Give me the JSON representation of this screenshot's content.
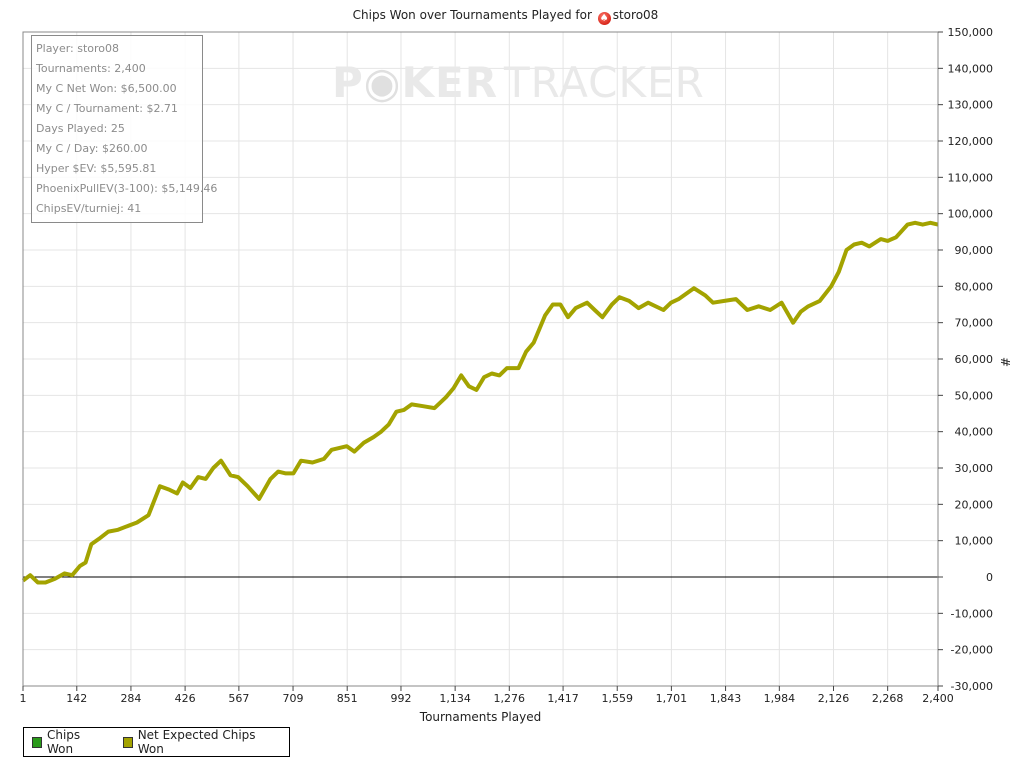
{
  "title": {
    "prefix": "Chips Won over Tournaments Played for",
    "player": "storo08",
    "icon": "spade-icon"
  },
  "watermark": {
    "part1": "P",
    "part2": "KER",
    "part3": "TRACKER"
  },
  "stats": [
    "Player: storo08",
    "Tournaments: 2,400",
    "My C Net Won: $6,500.00",
    "My C / Tournament: $2.71",
    "Days Played: 25",
    "My C / Day: $260.00",
    "Hyper $EV: $5,595.81",
    "PhoenixPullEV(3-100): $5,149.46",
    "ChipsEV/turniej: 41"
  ],
  "legend": [
    {
      "label": "Chips Won",
      "color": "#2a9a1a"
    },
    {
      "label": "Net Expected Chips Won",
      "color": "#a3a300"
    }
  ],
  "chart_data": {
    "type": "line",
    "title": "Chips Won over Tournaments Played for storo08",
    "xlabel": "Tournaments Played",
    "ylabel": "#",
    "xlim": [
      1,
      2400
    ],
    "ylim": [
      -30000,
      150000
    ],
    "grid": true,
    "x_ticks": [
      1,
      142,
      284,
      426,
      567,
      709,
      851,
      992,
      1134,
      1276,
      1417,
      1559,
      1701,
      1843,
      1984,
      2126,
      2268,
      2400
    ],
    "x_tick_labels": [
      "1",
      "142",
      "284",
      "426",
      "567",
      "709",
      "851",
      "992",
      "1,134",
      "1,276",
      "1,417",
      "1,559",
      "1,701",
      "1,843",
      "1,984",
      "2,126",
      "2,268",
      "2,400"
    ],
    "y_ticks": [
      -30000,
      -20000,
      -10000,
      0,
      10000,
      20000,
      30000,
      40000,
      50000,
      60000,
      70000,
      80000,
      90000,
      100000,
      110000,
      120000,
      130000,
      140000,
      150000
    ],
    "y_tick_labels": [
      "-30,000",
      "-20,000",
      "-10,000",
      "0",
      "10,000",
      "20,000",
      "30,000",
      "40,000",
      "50,000",
      "60,000",
      "70,000",
      "80,000",
      "90,000",
      "100,000",
      "110,000",
      "120,000",
      "130,000",
      "140,000",
      "150,000"
    ],
    "legend_position": "bottom-left",
    "series": [
      {
        "name": "Net Expected Chips Won",
        "color": "#a3a300",
        "x": [
          1,
          20,
          40,
          60,
          85,
          110,
          130,
          150,
          165,
          180,
          200,
          225,
          250,
          275,
          300,
          330,
          360,
          385,
          405,
          420,
          440,
          460,
          480,
          500,
          520,
          545,
          565,
          590,
          620,
          650,
          670,
          690,
          710,
          730,
          760,
          790,
          810,
          850,
          870,
          895,
          920,
          940,
          960,
          980,
          1000,
          1020,
          1050,
          1080,
          1110,
          1130,
          1150,
          1170,
          1190,
          1210,
          1230,
          1250,
          1270,
          1300,
          1320,
          1340,
          1370,
          1390,
          1410,
          1430,
          1450,
          1480,
          1500,
          1520,
          1545,
          1565,
          1590,
          1615,
          1640,
          1680,
          1700,
          1720,
          1760,
          1790,
          1810,
          1840,
          1870,
          1900,
          1930,
          1960,
          1990,
          2020,
          2040,
          2060,
          2090,
          2120,
          2140,
          2160,
          2180,
          2200,
          2220,
          2250,
          2268,
          2290,
          2320,
          2340,
          2360,
          2380,
          2400
        ],
        "values": [
          -1000,
          500,
          -1500,
          -1500,
          -500,
          1000,
          500,
          3000,
          4000,
          9000,
          10500,
          12500,
          13000,
          14000,
          15000,
          17000,
          25000,
          24000,
          23000,
          26000,
          24500,
          27500,
          27000,
          30000,
          32000,
          28000,
          27500,
          25000,
          21500,
          27000,
          29000,
          28500,
          28500,
          32000,
          31500,
          32500,
          35000,
          36000,
          34500,
          37000,
          38500,
          40000,
          42000,
          45500,
          46000,
          47500,
          47000,
          46500,
          49500,
          52000,
          55500,
          52500,
          51500,
          55000,
          56000,
          55500,
          57500,
          57500,
          62000,
          64500,
          72000,
          75000,
          75000,
          71500,
          74000,
          75500,
          73500,
          71500,
          75000,
          77000,
          76000,
          74000,
          75500,
          73500,
          75500,
          76500,
          79500,
          77500,
          75500,
          76000,
          76500,
          73500,
          74500,
          73500,
          75500,
          70000,
          73000,
          74500,
          76000,
          80000,
          84000,
          90000,
          91500,
          92000,
          91000,
          93000,
          92500,
          93500,
          97000,
          97500,
          97000,
          97500,
          97000
        ]
      }
    ]
  }
}
